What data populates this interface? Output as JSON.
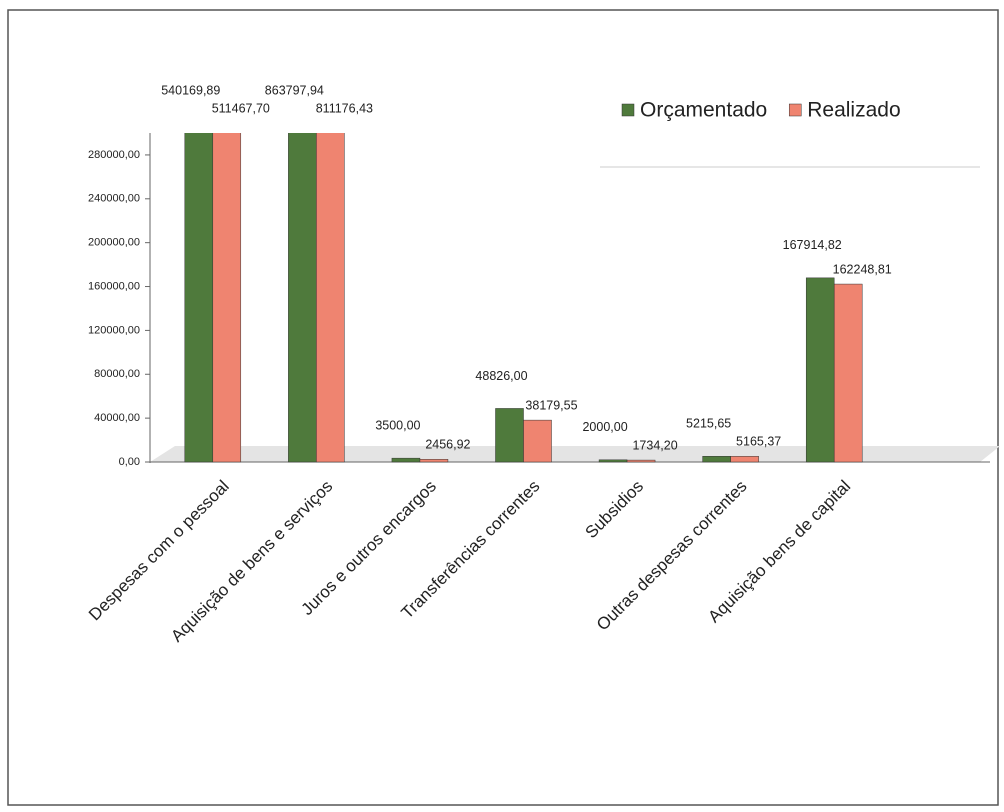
{
  "chart_data": {
    "type": "bar",
    "categories": [
      "Despesas com o pessoal",
      "Aquisição de bens e serviços",
      "Juros e outros encargos",
      "Transferências correntes",
      "Subsidios",
      "Outras despesas correntes",
      "Aquisição bens de capital"
    ],
    "series": [
      {
        "name": "Orçamentado",
        "color": "#4f7a3c",
        "values": [
          540169.89,
          863797.94,
          3500.0,
          48826.0,
          2000.0,
          5215.65,
          167914.82
        ],
        "value_labels": [
          "540169,89",
          "863797,94",
          "3500,00",
          "48826,00",
          "2000,00",
          "5215,65",
          "167914,82"
        ]
      },
      {
        "name": "Realizado",
        "color": "#ef8470",
        "values": [
          511467.7,
          811176.43,
          2456.92,
          38179.55,
          1734.2,
          5165.37,
          162248.81
        ],
        "value_labels": [
          "511467,70",
          "811176,43",
          "2456,92",
          "38179,55",
          "1734,20",
          "5165,37",
          "162248,81"
        ]
      }
    ],
    "ylim": [
      0,
      300000
    ],
    "yticks": [
      {
        "value": 0,
        "label": "0,00"
      },
      {
        "value": 40000,
        "label": "40000,00"
      },
      {
        "value": 80000,
        "label": "80000,00"
      },
      {
        "value": 120000,
        "label": "120000,00"
      },
      {
        "value": 160000,
        "label": "160000,00"
      },
      {
        "value": 200000,
        "label": "200000,00"
      },
      {
        "value": 240000,
        "label": "240000,00"
      },
      {
        "value": 280000,
        "label": "280000,00"
      }
    ],
    "legend": "top-right"
  }
}
